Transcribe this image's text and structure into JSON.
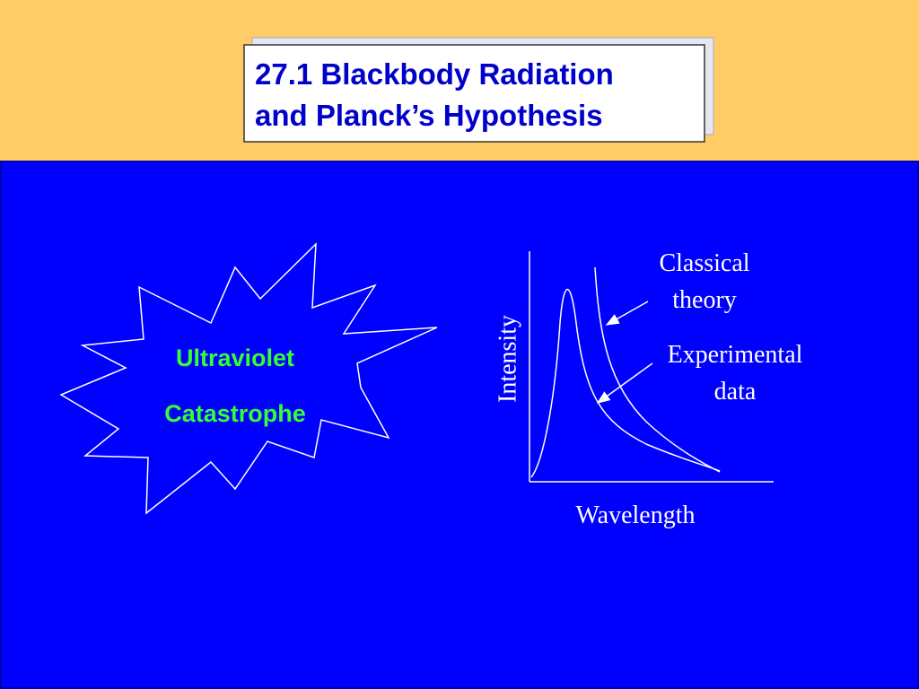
{
  "title": {
    "lines": [
      "27.1 Blackbody Radiation",
      "and Planck’s Hypothesis"
    ]
  },
  "starburst": {
    "lines": [
      "Ultraviolet",
      "Catastrophe"
    ]
  },
  "diagram": {
    "y_axis_label": "Intensity",
    "x_axis_label": "Wavelength",
    "annotations": [
      {
        "lines": [
          "Classical",
          "theory"
        ]
      },
      {
        "lines": [
          "Experimental",
          "data"
        ]
      }
    ]
  }
}
